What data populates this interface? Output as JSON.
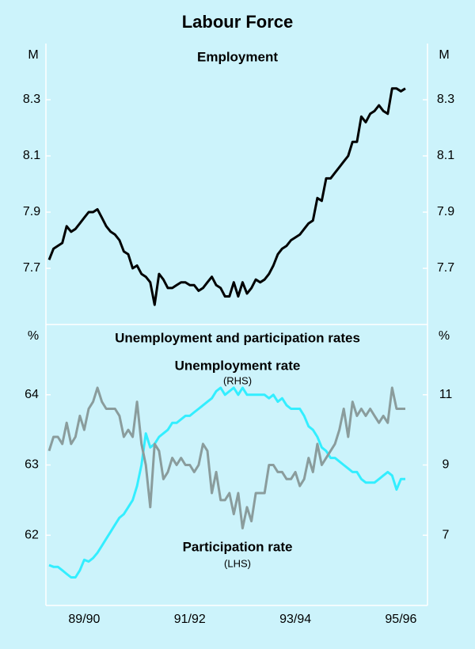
{
  "title": "Labour Force",
  "chart_data": [
    {
      "type": "line",
      "title": "Employment",
      "ylabel": "M",
      "y2label": "M",
      "ylim": [
        7.5,
        8.5
      ],
      "yticks": [
        7.7,
        7.9,
        8.1,
        8.3
      ],
      "y2lim": [
        7.5,
        8.5
      ],
      "y2ticks": [
        7.7,
        7.9,
        8.1,
        8.3
      ],
      "series": [
        {
          "color": "#000000",
          "values": [
            7.73,
            7.77,
            7.78,
            7.79,
            7.85,
            7.83,
            7.84,
            7.86,
            7.88,
            7.9,
            7.9,
            7.91,
            7.88,
            7.85,
            7.83,
            7.82,
            7.8,
            7.76,
            7.75,
            7.7,
            7.71,
            7.68,
            7.67,
            7.65,
            7.57,
            7.68,
            7.66,
            7.63,
            7.63,
            7.64,
            7.65,
            7.65,
            7.64,
            7.64,
            7.62,
            7.63,
            7.65,
            7.67,
            7.64,
            7.63,
            7.6,
            7.6,
            7.65,
            7.6,
            7.65,
            7.61,
            7.63,
            7.66,
            7.65,
            7.66,
            7.68,
            7.71,
            7.75,
            7.77,
            7.78,
            7.8,
            7.81,
            7.82,
            7.84,
            7.86,
            7.87,
            7.95,
            7.94,
            8.02,
            8.02,
            8.04,
            8.06,
            8.08,
            8.1,
            8.15,
            8.15,
            8.24,
            8.22,
            8.25,
            8.26,
            8.28,
            8.26,
            8.25,
            8.34,
            8.34,
            8.33,
            8.34
          ]
        }
      ]
    },
    {
      "type": "line",
      "title": "Unemployment and participation rates",
      "ylabel": "%",
      "y2label": "%",
      "ylim": [
        61,
        65
      ],
      "yticks": [
        62,
        63,
        64
      ],
      "y2lim": [
        5,
        13
      ],
      "y2ticks": [
        7,
        9,
        11
      ],
      "categories": [
        null,
        null,
        null,
        null,
        null,
        null,
        null,
        null,
        "89/90",
        null,
        null,
        null,
        null,
        null,
        null,
        null,
        null,
        null,
        null,
        null,
        null,
        null,
        null,
        null,
        null,
        null,
        null,
        null,
        null,
        null,
        null,
        null,
        "91/92",
        null,
        null,
        null,
        null,
        null,
        null,
        null,
        null,
        null,
        null,
        null,
        null,
        null,
        null,
        null,
        null,
        null,
        null,
        null,
        null,
        null,
        null,
        null,
        "93/94",
        null,
        null,
        null,
        null,
        null,
        null,
        null,
        null,
        null,
        null,
        null,
        null,
        null,
        null,
        null,
        null,
        null,
        null,
        null,
        null,
        null,
        null,
        null,
        "95/96",
        null
      ],
      "series": [
        {
          "name": "Unemployment rate",
          "axis_note": "(RHS)",
          "axis": "y2",
          "color": "#33eeff",
          "values": [
            6.15,
            6.1,
            6.1,
            6.0,
            5.9,
            5.8,
            5.8,
            6.0,
            6.3,
            6.25,
            6.35,
            6.5,
            6.7,
            6.9,
            7.1,
            7.3,
            7.5,
            7.6,
            7.8,
            8.0,
            8.4,
            9.0,
            9.9,
            9.5,
            9.6,
            9.8,
            9.9,
            10.0,
            10.2,
            10.2,
            10.3,
            10.4,
            10.4,
            10.5,
            10.6,
            10.7,
            10.8,
            10.9,
            11.1,
            11.2,
            11.0,
            11.1,
            11.2,
            11.0,
            11.2,
            11.0,
            11.0,
            11.0,
            11.0,
            11.0,
            10.9,
            11.0,
            10.8,
            10.9,
            10.7,
            10.6,
            10.6,
            10.6,
            10.4,
            10.1,
            10.0,
            9.8,
            9.5,
            9.4,
            9.2,
            9.2,
            9.1,
            9.0,
            8.9,
            8.8,
            8.8,
            8.6,
            8.5,
            8.5,
            8.5,
            8.6,
            8.7,
            8.8,
            8.7,
            8.3,
            8.6,
            8.6
          ]
        },
        {
          "name": "Participation rate",
          "axis_note": "(LHS)",
          "color": "#8a9c9c",
          "values": [
            63.2,
            63.4,
            63.4,
            63.3,
            63.6,
            63.3,
            63.4,
            63.7,
            63.5,
            63.8,
            63.9,
            64.1,
            63.9,
            63.8,
            63.8,
            63.8,
            63.7,
            63.4,
            63.5,
            63.4,
            63.9,
            63.3,
            63.0,
            62.4,
            63.3,
            63.2,
            62.8,
            62.9,
            63.1,
            63.0,
            63.1,
            63.0,
            63.0,
            62.9,
            63.0,
            63.3,
            63.2,
            62.6,
            62.9,
            62.5,
            62.5,
            62.6,
            62.3,
            62.6,
            62.1,
            62.4,
            62.2,
            62.6,
            62.6,
            62.6,
            63.0,
            63.0,
            62.9,
            62.9,
            62.8,
            62.8,
            62.9,
            62.7,
            62.8,
            63.1,
            62.9,
            63.3,
            63.0,
            63.1,
            63.2,
            63.3,
            63.5,
            63.8,
            63.4,
            63.9,
            63.7,
            63.8,
            63.7,
            63.8,
            63.7,
            63.6,
            63.7,
            63.6,
            64.1,
            63.8,
            63.8,
            63.8
          ]
        }
      ]
    }
  ]
}
